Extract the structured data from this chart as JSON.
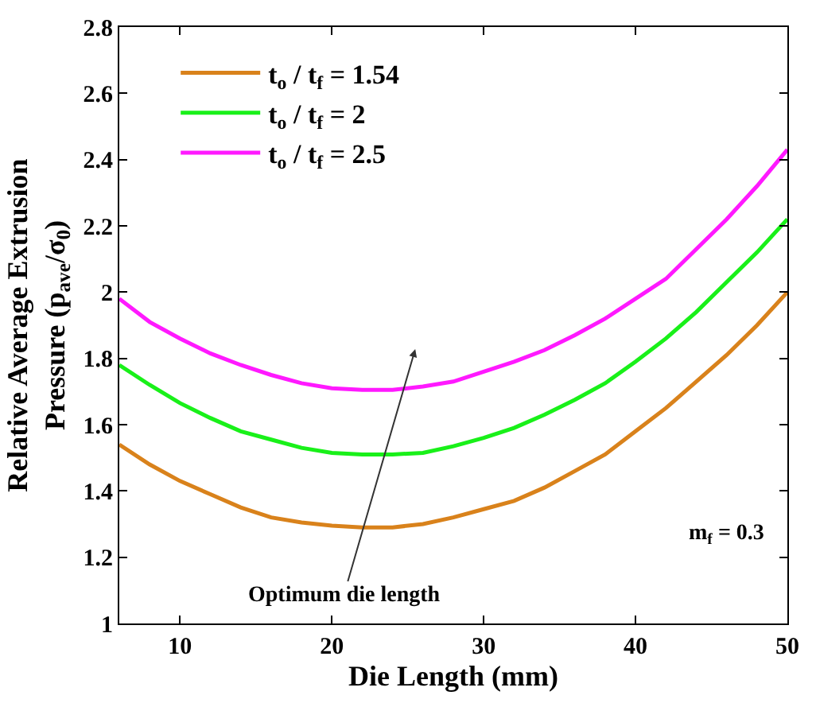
{
  "chart_data": {
    "type": "line",
    "xlabel": "Die Length (mm)",
    "ylabel": "Relative Average Extrusion\nPressure (p$_{ave}$/σ$_{0}$)",
    "x": [
      6,
      8,
      10,
      12,
      14,
      16,
      18,
      20,
      22,
      24,
      26,
      28,
      30,
      32,
      34,
      36,
      38,
      40,
      42,
      44,
      46,
      48,
      50
    ],
    "series": [
      {
        "name": "t$_{o}$ / t$_{f}$ = 1.54",
        "color": "#d9821b",
        "values": [
          1.54,
          1.48,
          1.43,
          1.39,
          1.35,
          1.32,
          1.305,
          1.295,
          1.29,
          1.29,
          1.3,
          1.32,
          1.345,
          1.37,
          1.41,
          1.46,
          1.51,
          1.58,
          1.65,
          1.73,
          1.81,
          1.9,
          2.0
        ]
      },
      {
        "name": "t$_{o}$ / t$_{f}$ = 2",
        "color": "#19f019",
        "values": [
          1.78,
          1.72,
          1.665,
          1.62,
          1.58,
          1.555,
          1.53,
          1.515,
          1.51,
          1.51,
          1.515,
          1.535,
          1.56,
          1.59,
          1.63,
          1.675,
          1.725,
          1.79,
          1.86,
          1.94,
          2.03,
          2.12,
          2.22
        ]
      },
      {
        "name": "t$_{o}$ / t$_{f}$ = 2.5",
        "color": "#ff19ff",
        "values": [
          1.98,
          1.91,
          1.86,
          1.815,
          1.78,
          1.75,
          1.725,
          1.71,
          1.705,
          1.705,
          1.715,
          1.73,
          1.76,
          1.79,
          1.825,
          1.87,
          1.92,
          1.98,
          2.04,
          2.13,
          2.22,
          2.32,
          2.43
        ]
      }
    ],
    "xlim": [
      6,
      50
    ],
    "xticks": [
      10,
      20,
      30,
      40,
      50
    ],
    "ylim": [
      1,
      2.8
    ],
    "yticks": [
      1,
      1.2,
      1.4,
      1.6,
      1.8,
      2,
      2.2,
      2.4,
      2.6,
      2.8
    ],
    "annotations": [
      "Optimum die length",
      "m$_{f}$ = 0.3"
    ],
    "legend": "top left",
    "marker": "none",
    "line_style": "solid"
  }
}
